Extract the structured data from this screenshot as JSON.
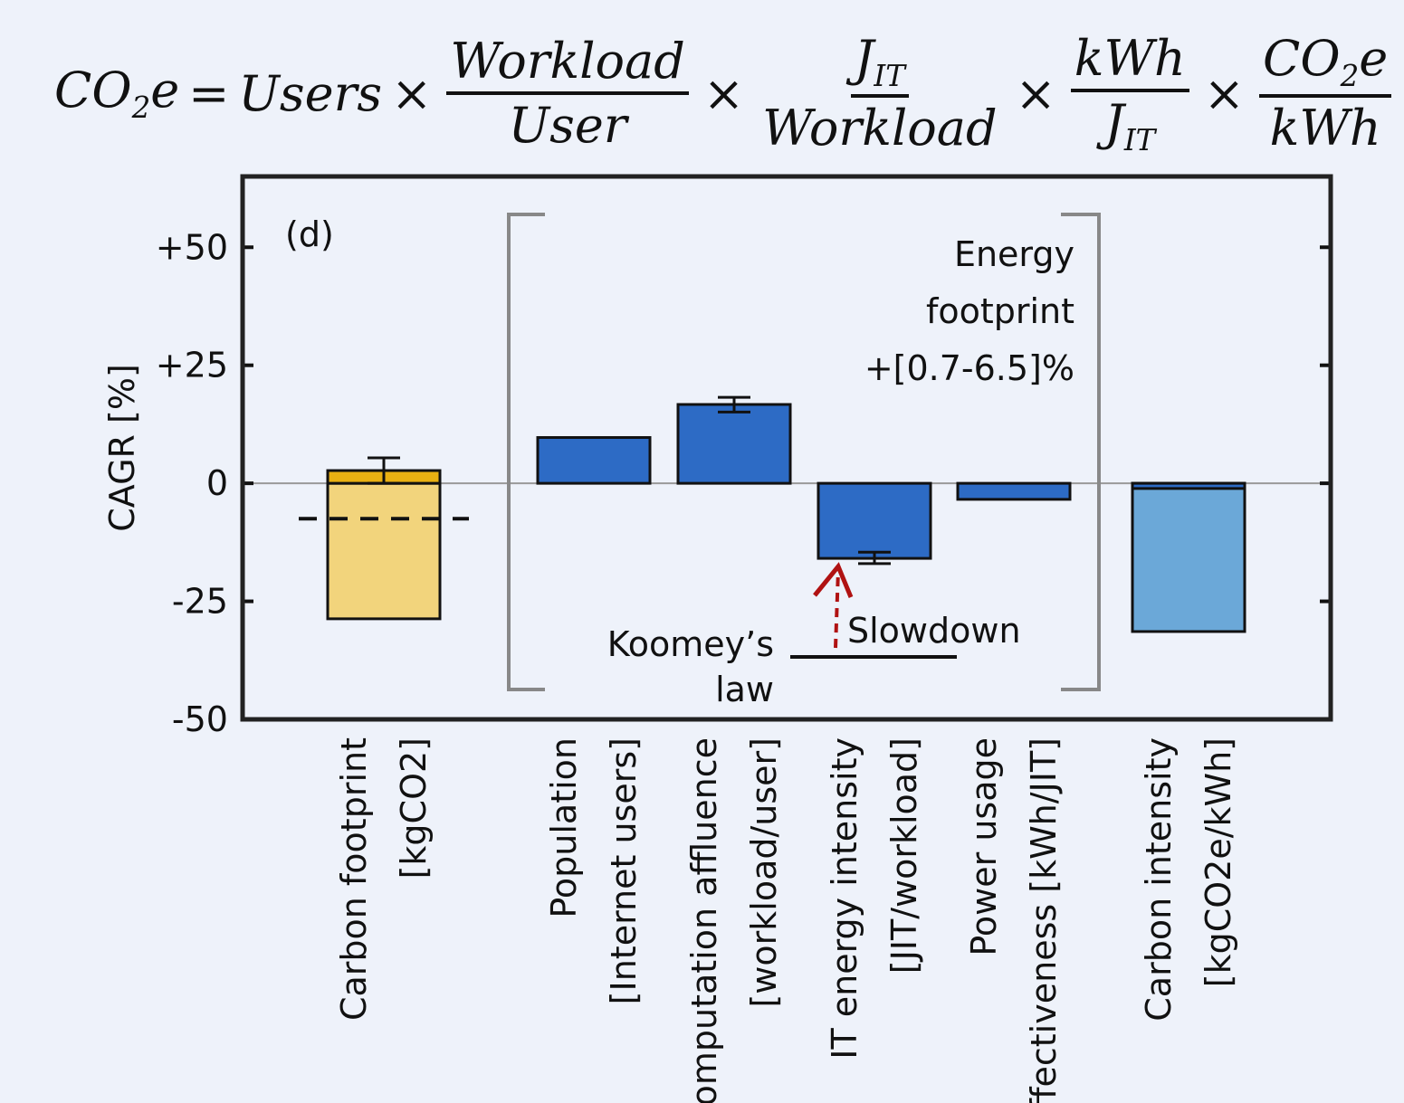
{
  "chart_data": {
    "type": "bar",
    "equation": {
      "lhs": "CO",
      "lhs_sub": "2",
      "lhs_tail": "e",
      "equals": "=",
      "times": "×",
      "first": "Users",
      "fractions": [
        {
          "num": "Workload",
          "den": "User"
        },
        {
          "num": "J",
          "num_sub": "IT",
          "den": "Workload"
        },
        {
          "num": "kWh",
          "den": "J",
          "den_sub": "IT"
        },
        {
          "num": "CO",
          "num_sub": "2",
          "num_tail": "e",
          "den": "kWh"
        }
      ]
    },
    "panel_label": "(d)",
    "y_label": "CAGR [%]",
    "categories": [
      [
        "Carbon footprint",
        "[kgCO2]"
      ],
      [
        "Population",
        "[Internet users]"
      ],
      [
        "Computation affluence",
        "[workload/user]"
      ],
      [
        "IT energy intensity",
        "[JIT/workload]"
      ],
      [
        "Power usage",
        "effectiveness [kWh/JIT]"
      ],
      [
        "Carbon intensity",
        "[kgCO2e/kWh]"
      ]
    ],
    "series": [
      {
        "colors": [
          "#f2d47c",
          null,
          null,
          null,
          null,
          "#6ba8d8"
        ],
        "values": [
          -28.7,
          null,
          null,
          null,
          null,
          -31.4
        ]
      },
      {
        "colors": [
          "#e9b012",
          "#2d6bc5",
          "#2d6bc5",
          "#2d6bc5",
          "#2d6bc5",
          "#2d6bc5"
        ],
        "values": [
          2.7,
          9.7,
          16.7,
          -15.9,
          -3.4,
          -1.1
        ],
        "error_low": [
          0,
          null,
          15.1,
          -17,
          null,
          null
        ],
        "error_high": [
          5.4,
          null,
          18.2,
          -14.6,
          null,
          null
        ]
      }
    ],
    "dashed_line": {
      "value": -7.5
    },
    "ylim": [
      -50,
      65
    ],
    "yticks": [
      {
        "value": 50,
        "label": "+50"
      },
      {
        "value": 25,
        "label": "+25"
      },
      0,
      -25,
      -50
    ],
    "annotations": {
      "energy": [
        "Energy",
        "footprint",
        "+[0.7-6.5]%"
      ],
      "koomey": [
        "Koomey’s",
        "law"
      ],
      "slowdown": "Slowdown"
    }
  }
}
